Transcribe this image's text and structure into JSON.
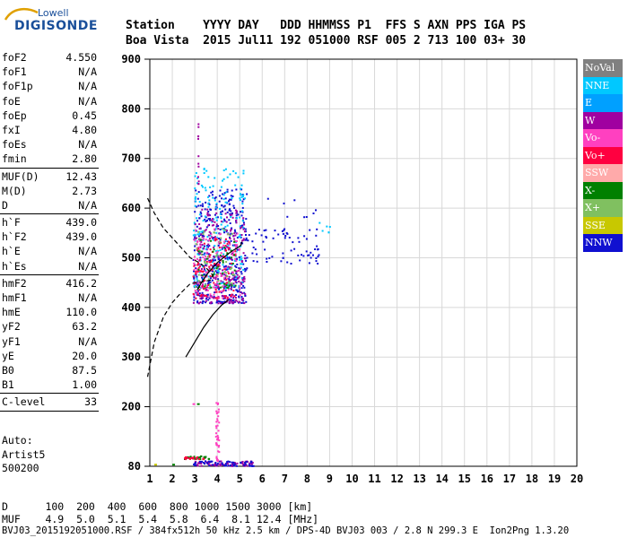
{
  "logo": {
    "top": "Lowell",
    "main": "DIGISONDE"
  },
  "header": {
    "line1": "Station    YYYY DAY   DDD HHMMSS P1  FFS S AXN PPS IGA PS",
    "line2": "Boa Vista  2015 Jul11 192 051000 RSF 005 2 713 100 03+ 30"
  },
  "params": [
    {
      "label": "foF2",
      "value": "4.550"
    },
    {
      "label": "foF1",
      "value": "N/A"
    },
    {
      "label": "foF1p",
      "value": "N/A"
    },
    {
      "label": "foE",
      "value": "N/A"
    },
    {
      "label": "foEp",
      "value": "0.45"
    },
    {
      "label": "fxI",
      "value": "4.80"
    },
    {
      "label": "foEs",
      "value": "N/A"
    },
    {
      "label": "fmin",
      "value": "2.80",
      "sep": true
    },
    {
      "label": "MUF(D)",
      "value": "12.43"
    },
    {
      "label": "M(D)",
      "value": "2.73"
    },
    {
      "label": "D",
      "value": "N/A",
      "sep": true
    },
    {
      "label": "h`F",
      "value": "439.0"
    },
    {
      "label": "h`F2",
      "value": "439.0"
    },
    {
      "label": "h`E",
      "value": "N/A"
    },
    {
      "label": "h`Es",
      "value": "N/A",
      "sep": true
    },
    {
      "label": "hmF2",
      "value": "416.2"
    },
    {
      "label": "hmF1",
      "value": "N/A"
    },
    {
      "label": "hmE",
      "value": "110.0"
    },
    {
      "label": "yF2",
      "value": "63.2"
    },
    {
      "label": "yF1",
      "value": "N/A"
    },
    {
      "label": "yE",
      "value": "20.0"
    },
    {
      "label": "B0",
      "value": "87.5"
    },
    {
      "label": "B1",
      "value": "1.00",
      "sep": true
    },
    {
      "label": "C-level",
      "value": "33",
      "sep": true
    }
  ],
  "auto": {
    "line1": "Auto:",
    "line2": "Artist5",
    "line3": "500200"
  },
  "legend": [
    {
      "label": "NoVal",
      "color": "#808080"
    },
    {
      "label": "NNE",
      "color": "#00c8ff"
    },
    {
      "label": "E",
      "color": "#00a0ff"
    },
    {
      "label": "W",
      "color": "#a000a0"
    },
    {
      "label": "Vo-",
      "color": "#ff40c0"
    },
    {
      "label": "Vo+",
      "color": "#ff0040"
    },
    {
      "label": "SSW",
      "color": "#ffaaaa"
    },
    {
      "label": "X-",
      "color": "#008000"
    },
    {
      "label": "X+",
      "color": "#80c060"
    },
    {
      "label": "SSE",
      "color": "#c8c800"
    },
    {
      "label": "NNW",
      "color": "#1010d0"
    }
  ],
  "footer": {
    "line1": "D      100  200  400  600  800 1000 1500 3000 [km]",
    "line2": "MUF    4.9  5.0  5.1  5.4  5.8  6.4  8.1 12.4 [MHz]",
    "line3": "BVJ03_2015192051000.RSF / 384fx512h 50 kHz 2.5 km / DPS-4D BVJ03 003 / 2.8 N 299.3 E  Ion2Png 1.3.20"
  },
  "chart_data": {
    "type": "scatter",
    "title": "",
    "xlabel": "",
    "ylabel": "",
    "xlim": [
      1,
      20
    ],
    "ylim": [
      80,
      900
    ],
    "x_ticks": [
      1,
      2,
      3,
      4,
      5,
      6,
      7,
      8,
      9,
      10,
      11,
      12,
      13,
      14,
      15,
      16,
      17,
      18,
      19,
      20
    ],
    "y_ticks": [
      80,
      200,
      300,
      400,
      500,
      600,
      700,
      800,
      900
    ],
    "grid": true,
    "trace_solid": {
      "x": [
        3.1,
        3.3,
        3.6,
        4.0,
        4.4,
        4.7,
        4.9,
        5.05,
        5.1
      ],
      "y": [
        435,
        450,
        470,
        490,
        505,
        515,
        520,
        525,
        532
      ]
    },
    "profile_solid": {
      "x": [
        2.6,
        3.0,
        3.4,
        3.8,
        4.2,
        4.5
      ],
      "y": [
        300,
        330,
        360,
        385,
        405,
        415
      ]
    },
    "profile_dashed": {
      "x": [
        0.9,
        1.2,
        1.6,
        2.0,
        2.4,
        2.8,
        3.2,
        3.5,
        3.8,
        3.7,
        3.2,
        2.8,
        2.4,
        2.0,
        1.6,
        1.2,
        0.9
      ],
      "y": [
        620,
        590,
        560,
        540,
        520,
        500,
        490,
        480,
        465,
        455,
        450,
        448,
        430,
        410,
        380,
        330,
        260
      ]
    },
    "clusters": [
      {
        "color": "#1010d0",
        "xmin": 2.9,
        "xmax": 5.3,
        "ymin": 410,
        "ymax": 640,
        "n": 420
      },
      {
        "color": "#00c8ff",
        "xmin": 2.9,
        "xmax": 5.2,
        "ymin": 440,
        "ymax": 690,
        "n": 220
      },
      {
        "color": "#a000a0",
        "xmin": 2.9,
        "xmax": 5.2,
        "ymin": 410,
        "ymax": 600,
        "n": 220
      },
      {
        "color": "#ff40c0",
        "xmin": 2.9,
        "xmax": 5.0,
        "ymin": 420,
        "ymax": 560,
        "n": 120
      },
      {
        "color": "#ff0040",
        "xmin": 2.9,
        "xmax": 4.8,
        "ymin": 420,
        "ymax": 540,
        "n": 90
      },
      {
        "color": "#80c060",
        "xmin": 3.0,
        "xmax": 4.8,
        "ymin": 440,
        "ymax": 560,
        "n": 50
      },
      {
        "color": "#008000",
        "xmin": 3.0,
        "xmax": 4.8,
        "ymin": 440,
        "ymax": 540,
        "n": 40
      },
      {
        "color": "#1010d0",
        "xmin": 5.3,
        "xmax": 8.5,
        "ymin": 490,
        "ymax": 560,
        "n": 70
      },
      {
        "color": "#1010d0",
        "xmin": 6.0,
        "xmax": 8.4,
        "ymin": 580,
        "ymax": 640,
        "n": 8
      },
      {
        "color": "#00c8ff",
        "xmin": 8.2,
        "xmax": 9.0,
        "ymin": 550,
        "ymax": 580,
        "n": 6
      },
      {
        "color": "#a000a0",
        "xmin": 2.9,
        "xmax": 5.6,
        "ymin": 82,
        "ymax": 92,
        "n": 80
      },
      {
        "color": "#1010d0",
        "xmin": 2.9,
        "xmax": 5.6,
        "ymin": 82,
        "ymax": 92,
        "n": 60
      },
      {
        "color": "#008000",
        "xmin": 2.5,
        "xmax": 3.6,
        "ymin": 96,
        "ymax": 102,
        "n": 30
      },
      {
        "color": "#ff0040",
        "xmin": 2.5,
        "xmax": 3.4,
        "ymin": 96,
        "ymax": 102,
        "n": 20
      },
      {
        "color": "#ff40c0",
        "xmin": 3.9,
        "xmax": 4.05,
        "ymin": 90,
        "ymax": 210,
        "n": 40
      },
      {
        "color": "#a000a0",
        "xmin": 3.1,
        "xmax": 3.15,
        "ymin": 650,
        "ymax": 780,
        "n": 12
      }
    ],
    "isolated": [
      {
        "color": "#ff40c0",
        "x": 2.9,
        "y": 207
      },
      {
        "color": "#008000",
        "x": 3.1,
        "y": 207
      },
      {
        "color": "#c8c800",
        "x": 1.2,
        "y": 85
      },
      {
        "color": "#008000",
        "x": 2.0,
        "y": 85
      }
    ]
  }
}
